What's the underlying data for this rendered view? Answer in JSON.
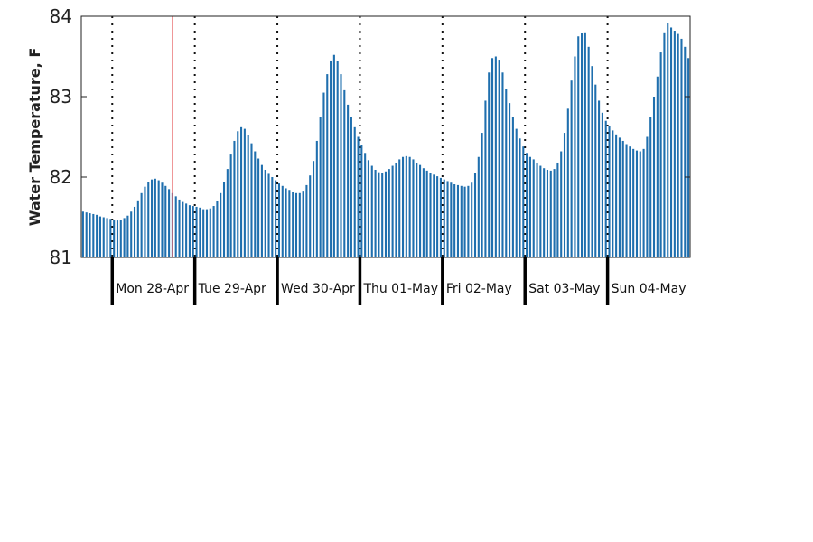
{
  "chart_data": {
    "type": "bar",
    "title": "",
    "xlabel": "",
    "ylabel": "Water Temperature, F",
    "ylim": [
      81,
      84
    ],
    "yticks": [
      "81",
      "82",
      "83",
      "84"
    ],
    "bar_color": "#1f6fae",
    "marker_color": "#e8696b",
    "grid": false,
    "days": [
      "Mon 28-Apr",
      "Tue 29-Apr",
      "Wed 30-Apr",
      "Thu 01-May",
      "Fri 02-May",
      "Sat 03-May",
      "Sun 04-May"
    ],
    "hours_per_day": 24,
    "day_start_index": 9,
    "marker_index": 26,
    "values": [
      81.57,
      81.56,
      81.55,
      81.54,
      81.53,
      81.51,
      81.5,
      81.49,
      81.48,
      81.47,
      81.46,
      81.47,
      81.49,
      81.52,
      81.57,
      81.63,
      81.71,
      81.8,
      81.88,
      81.94,
      81.97,
      81.98,
      81.96,
      81.93,
      81.89,
      81.85,
      81.8,
      81.76,
      81.72,
      81.69,
      81.67,
      81.65,
      81.64,
      81.63,
      81.62,
      81.6,
      81.6,
      81.61,
      81.64,
      81.7,
      81.8,
      81.94,
      82.1,
      82.28,
      82.45,
      82.57,
      82.62,
      82.6,
      82.52,
      82.42,
      82.32,
      82.23,
      82.15,
      82.09,
      82.04,
      82.0,
      81.96,
      81.92,
      81.89,
      81.86,
      81.84,
      81.82,
      81.8,
      81.8,
      81.83,
      81.9,
      82.02,
      82.2,
      82.45,
      82.75,
      83.05,
      83.28,
      83.45,
      83.52,
      83.44,
      83.28,
      83.08,
      82.9,
      82.75,
      82.62,
      82.5,
      82.4,
      82.3,
      82.21,
      82.14,
      82.09,
      82.06,
      82.05,
      82.07,
      82.1,
      82.14,
      82.18,
      82.22,
      82.25,
      82.26,
      82.25,
      82.22,
      82.18,
      82.15,
      82.11,
      82.08,
      82.05,
      82.03,
      82.01,
      81.99,
      81.97,
      81.95,
      81.93,
      81.91,
      81.9,
      81.89,
      81.88,
      81.89,
      81.93,
      82.05,
      82.25,
      82.55,
      82.95,
      83.3,
      83.48,
      83.5,
      83.46,
      83.3,
      83.1,
      82.92,
      82.75,
      82.6,
      82.48,
      82.38,
      82.3,
      82.25,
      82.22,
      82.18,
      82.14,
      82.11,
      82.09,
      82.08,
      82.1,
      82.18,
      82.32,
      82.55,
      82.85,
      83.2,
      83.5,
      83.75,
      83.79,
      83.8,
      83.62,
      83.38,
      83.15,
      82.95,
      82.8,
      82.7,
      82.64,
      82.58,
      82.53,
      82.49,
      82.45,
      82.41,
      82.38,
      82.35,
      82.33,
      82.32,
      82.35,
      82.5,
      82.75,
      83.0,
      83.25,
      83.55,
      83.8,
      83.92,
      83.86,
      83.82,
      83.78,
      83.72,
      83.62,
      83.48
    ]
  }
}
